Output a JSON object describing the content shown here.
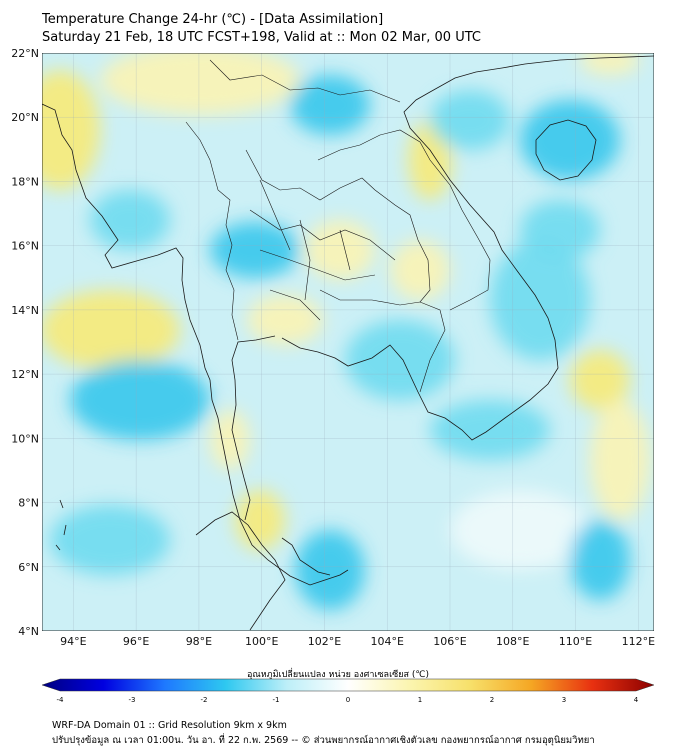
{
  "header": {
    "title_line1": "Temperature Change 24-hr (℃) - [Data Assimilation]",
    "title_line2": "Saturday 21 Feb, 18 UTC FCST+198, Valid at :: Mon 02 Mar, 00 UTC"
  },
  "map": {
    "lat_labels": [
      "22°N",
      "20°N",
      "18°N",
      "16°N",
      "14°N",
      "12°N",
      "10°N",
      "8°N",
      "6°N",
      "4°N"
    ],
    "lon_labels": [
      "94°E",
      "96°E",
      "98°E",
      "100°E",
      "102°E",
      "104°E",
      "106°E",
      "108°E",
      "110°E",
      "112°E"
    ],
    "lat_range": [
      4,
      22
    ],
    "lon_range": [
      93,
      112.5
    ],
    "grid": true,
    "field_colors": {
      "background": "#ccf0f6",
      "cool": "#6fdaf0",
      "cool_strong": "#38c6ec",
      "neutral": "#eef9fb",
      "warm": "#fbf3b4",
      "warm_strong": "#f7ea78"
    },
    "border_color": "#1a1a1a"
  },
  "colorbar": {
    "label": "อุณหภูมิเปลี่ยนแปลง หน่วย องศาเซลเซียส (℃)",
    "ticks": [
      "-4",
      "-3",
      "-2",
      "-1",
      "0",
      "1",
      "2",
      "3",
      "4"
    ],
    "range": [
      -4,
      4
    ],
    "colors": [
      "#000080",
      "#0000e0",
      "#1e78ff",
      "#2ec8f0",
      "#bdeff8",
      "#ffffff",
      "#fbf5b0",
      "#f7e06a",
      "#f5a623",
      "#e83010",
      "#8b0000"
    ]
  },
  "footer": {
    "line1": "WRF-DA Domain 01 :: Grid Resolution 9km x 9km",
    "line2": "ปรับปรุงข้อมูล ณ เวลา 01:00น. วัน อา. ที่ 22 ก.พ. 2569 -- © ส่วนพยากรณ์อากาศเชิงตัวเลข กองพยากรณ์อากาศ กรมอุตุนิยมวิทยา"
  }
}
